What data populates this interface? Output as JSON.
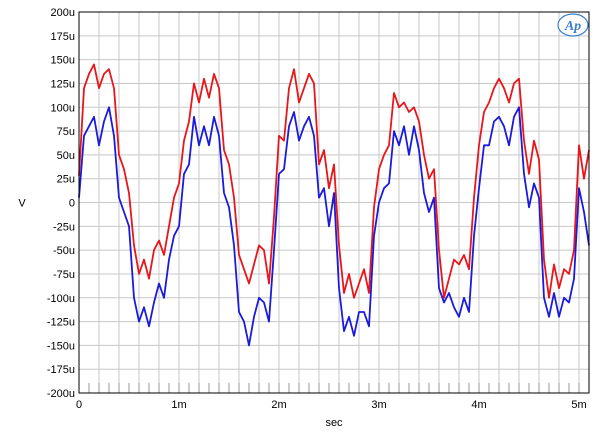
{
  "chart_data": {
    "type": "line",
    "title": "",
    "xlabel": "sec",
    "ylabel": "V",
    "xlim": [
      0,
      0.0051
    ],
    "ylim": [
      -0.0002,
      0.0002
    ],
    "x_tick_values": [
      0,
      0.001,
      0.002,
      0.003,
      0.004,
      0.005
    ],
    "x_tick_labels": [
      "0",
      "1m",
      "2m",
      "3m",
      "4m",
      "5m"
    ],
    "y_tick_values": [
      0.0002,
      0.000175,
      0.00015,
      0.000125,
      0.0001,
      7.5e-05,
      5e-05,
      2.5e-05,
      0,
      -2.5e-05,
      -5e-05,
      -7.5e-05,
      -0.0001,
      -0.000125,
      -0.00015,
      -0.000175,
      -0.0002
    ],
    "y_tick_labels": [
      "200u",
      "175u",
      "150u",
      "125u",
      "100u",
      "75u",
      "50u",
      "25u",
      "0",
      "-25u",
      "-50u",
      "-75u",
      "-100u",
      "-125u",
      "-150u",
      "-175u",
      "-200u"
    ],
    "grid": true,
    "logo": "Ap",
    "series": [
      {
        "color": "#e8161b",
        "x": [
          0,
          5e-05,
          0.0001,
          0.00015,
          0.0002,
          0.00025,
          0.0003,
          0.00035,
          0.0004,
          0.00045,
          0.0005,
          0.00055,
          0.0006,
          0.00065,
          0.0007,
          0.00075,
          0.0008,
          0.00085,
          0.0009,
          0.00095,
          0.001,
          0.00105,
          0.0011,
          0.00115,
          0.0012,
          0.00125,
          0.0013,
          0.00135,
          0.0014,
          0.00145,
          0.0015,
          0.00155,
          0.0016,
          0.00165,
          0.0017,
          0.00175,
          0.0018,
          0.00185,
          0.0019,
          0.00195,
          0.002,
          0.00205,
          0.0021,
          0.00215,
          0.0022,
          0.00225,
          0.0023,
          0.00235,
          0.0024,
          0.00245,
          0.0025,
          0.00255,
          0.0026,
          0.00265,
          0.0027,
          0.00275,
          0.0028,
          0.00285,
          0.0029,
          0.00295,
          0.003,
          0.00305,
          0.0031,
          0.00315,
          0.0032,
          0.00325,
          0.0033,
          0.00335,
          0.0034,
          0.00345,
          0.0035,
          0.00355,
          0.0036,
          0.00365,
          0.0037,
          0.00375,
          0.0038,
          0.00385,
          0.0039,
          0.00395,
          0.004,
          0.00405,
          0.0041,
          0.00415,
          0.0042,
          0.00425,
          0.0043,
          0.00435,
          0.0044,
          0.00445,
          0.0045,
          0.00455,
          0.0046,
          0.00465,
          0.0047,
          0.00475,
          0.0048,
          0.00485,
          0.0049,
          0.00495,
          0.005,
          0.00505,
          0.0051
        ],
        "y": [
          2.8e-05,
          0.00012,
          0.000135,
          0.000145,
          0.00012,
          0.000135,
          0.00014,
          0.00012,
          5e-05,
          3.5e-05,
          1e-05,
          -4.5e-05,
          -7.5e-05,
          -6e-05,
          -8e-05,
          -5e-05,
          -4e-05,
          -5.5e-05,
          -2.5e-05,
          5e-06,
          2e-05,
          6.5e-05,
          8.5e-05,
          0.000125,
          0.000105,
          0.00013,
          0.00011,
          0.000135,
          0.00012,
          5.5e-05,
          4e-05,
          5e-06,
          -5.5e-05,
          -7e-05,
          -8.5e-05,
          -6.5e-05,
          -4.5e-05,
          -5e-05,
          -8.5e-05,
          -1.5e-05,
          7e-05,
          6.5e-05,
          0.00012,
          0.00014,
          0.000105,
          0.00012,
          0.000135,
          0.000125,
          4e-05,
          5.5e-05,
          1.5e-05,
          4e-05,
          -4.5e-05,
          -9.5e-05,
          -7.5e-05,
          -0.0001,
          -8.5e-05,
          -7e-05,
          -9.5e-05,
          -5e-06,
          3.5e-05,
          5e-05,
          6e-05,
          0.000115,
          0.0001,
          0.000105,
          9.5e-05,
          0.0001,
          8.5e-05,
          5e-05,
          2.5e-05,
          3.5e-05,
          -5e-05,
          -0.0001,
          -8e-05,
          -6e-05,
          -6.5e-05,
          -5.5e-05,
          -7e-05,
          5e-06,
          6e-05,
          9.5e-05,
          0.000105,
          0.00012,
          0.00013,
          0.00012,
          0.000105,
          0.000125,
          0.00013,
          6.5e-05,
          3e-05,
          6.5e-05,
          4.5e-05,
          -6e-05,
          -0.0001,
          -6.5e-05,
          -9e-05,
          -7e-05,
          -7.5e-05,
          -5e-05,
          6e-05,
          2.5e-05,
          5.5e-05
        ]
      },
      {
        "color": "#1a1adc",
        "x": [
          0,
          5e-05,
          0.0001,
          0.00015,
          0.0002,
          0.00025,
          0.0003,
          0.00035,
          0.0004,
          0.00045,
          0.0005,
          0.00055,
          0.0006,
          0.00065,
          0.0007,
          0.00075,
          0.0008,
          0.00085,
          0.0009,
          0.00095,
          0.001,
          0.00105,
          0.0011,
          0.00115,
          0.0012,
          0.00125,
          0.0013,
          0.00135,
          0.0014,
          0.00145,
          0.0015,
          0.00155,
          0.0016,
          0.00165,
          0.0017,
          0.00175,
          0.0018,
          0.00185,
          0.0019,
          0.00195,
          0.002,
          0.00205,
          0.0021,
          0.00215,
          0.0022,
          0.00225,
          0.0023,
          0.00235,
          0.0024,
          0.00245,
          0.0025,
          0.00255,
          0.0026,
          0.00265,
          0.0027,
          0.00275,
          0.0028,
          0.00285,
          0.0029,
          0.00295,
          0.003,
          0.00305,
          0.0031,
          0.00315,
          0.0032,
          0.00325,
          0.0033,
          0.00335,
          0.0034,
          0.00345,
          0.0035,
          0.00355,
          0.0036,
          0.00365,
          0.0037,
          0.00375,
          0.0038,
          0.00385,
          0.0039,
          0.00395,
          0.004,
          0.00405,
          0.0041,
          0.00415,
          0.0042,
          0.00425,
          0.0043,
          0.00435,
          0.0044,
          0.00445,
          0.0045,
          0.00455,
          0.0046,
          0.00465,
          0.0047,
          0.00475,
          0.0048,
          0.00485,
          0.0049,
          0.00495,
          0.005,
          0.00505,
          0.0051
        ],
        "y": [
          5e-06,
          7e-05,
          8e-05,
          9e-05,
          6e-05,
          8.5e-05,
          0.0001,
          7e-05,
          5e-06,
          -1e-05,
          -2.5e-05,
          -0.0001,
          -0.000125,
          -0.00011,
          -0.00013,
          -0.000105,
          -8.5e-05,
          -0.0001,
          -6e-05,
          -3.5e-05,
          -2.5e-05,
          3e-05,
          4e-05,
          9e-05,
          6e-05,
          8e-05,
          6e-05,
          9e-05,
          7e-05,
          1e-05,
          -5e-06,
          -4.5e-05,
          -0.000115,
          -0.000125,
          -0.00015,
          -0.00012,
          -0.0001,
          -0.000105,
          -0.000125,
          -5e-05,
          3e-05,
          3.5e-05,
          8e-05,
          9.5e-05,
          6.5e-05,
          8e-05,
          9e-05,
          7e-05,
          5e-06,
          1.5e-05,
          -2.5e-05,
          1e-05,
          -9e-05,
          -0.000135,
          -0.00012,
          -0.00014,
          -0.000115,
          -0.000115,
          -0.00013,
          -3.5e-05,
          0,
          1.5e-05,
          2e-05,
          7.5e-05,
          6e-05,
          8e-05,
          5e-05,
          8e-05,
          5.5e-05,
          1e-05,
          -1e-05,
          5e-06,
          -9e-05,
          -0.000105,
          -9.5e-05,
          -0.00011,
          -0.00012,
          -0.0001,
          -0.000115,
          -3.5e-05,
          1.5e-05,
          6e-05,
          6e-05,
          8.5e-05,
          9e-05,
          8e-05,
          6e-05,
          9e-05,
          0.0001,
          3e-05,
          -5e-06,
          2e-05,
          5e-06,
          -0.0001,
          -0.00012,
          -9.5e-05,
          -0.00012,
          -0.0001,
          -0.000105,
          -8e-05,
          1.5e-05,
          -1e-05,
          -4.5e-05
        ]
      }
    ]
  }
}
